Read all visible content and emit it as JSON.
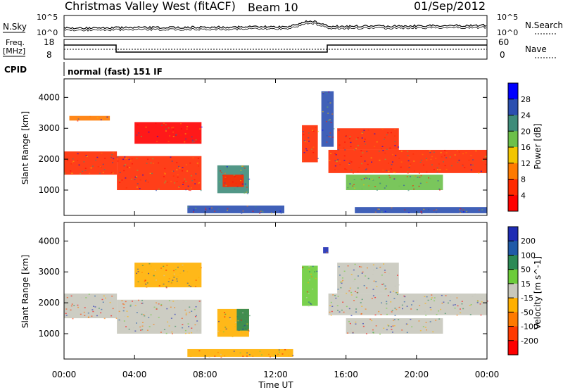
{
  "header": {
    "radar": "Christmas Valley West (fitACF)",
    "beam": "Beam 10",
    "date": "01/Sep/2012"
  },
  "panels": {
    "nsky_label": "N.Sky",
    "nsearch_label": "N.Search",
    "nsky_ticks": [
      "10^5",
      "10^0"
    ],
    "nsearch_ticks": [
      "10^5",
      "10^0"
    ],
    "freq_label_1": "Freq.",
    "freq_label_2": "[MHz]",
    "freq_ticks": [
      "18",
      "8"
    ],
    "nave_label": "Nave",
    "nave_ticks": [
      "60",
      "0"
    ],
    "cpid_label": "CPID",
    "cpid_text": "normal (fast) 151 IF"
  },
  "chart_data": [
    {
      "type": "heatmap",
      "name": "power",
      "ylabel": "Slant Range [km]",
      "yticks": [
        1000,
        2000,
        3000,
        4000
      ],
      "ylim": [
        180,
        4600
      ],
      "xlim": [
        0,
        24
      ],
      "colorbar_label": "Power [dB]",
      "colorbar_ticks": [
        4,
        8,
        12,
        16,
        20,
        24,
        28
      ],
      "colorbar_colors": [
        "#0000ff",
        "#2b4fb0",
        "#3f8c7a",
        "#6cc04a",
        "#f2c500",
        "#ff7a00",
        "#ff2a00",
        "#ff0000"
      ],
      "regions": [
        {
          "t0": 0.0,
          "t1": 3.0,
          "r0": 1500,
          "r1": 2250,
          "color": "#ff2a00"
        },
        {
          "t0": 0.3,
          "t1": 2.6,
          "r0": 3250,
          "r1": 3400,
          "color": "#ff7a00"
        },
        {
          "t0": 3.0,
          "t1": 7.8,
          "r0": 1000,
          "r1": 2100,
          "color": "#ff2a00"
        },
        {
          "t0": 4.0,
          "t1": 7.8,
          "r0": 2500,
          "r1": 3200,
          "color": "#ff0000"
        },
        {
          "t0": 8.7,
          "t1": 10.5,
          "r0": 900,
          "r1": 1800,
          "color": "#3f8c7a"
        },
        {
          "t0": 9.0,
          "t1": 10.2,
          "r0": 1100,
          "r1": 1500,
          "color": "#ff2a00"
        },
        {
          "t0": 7.0,
          "t1": 12.5,
          "r0": 250,
          "r1": 500,
          "color": "#2b4fb0"
        },
        {
          "t0": 13.5,
          "t1": 14.4,
          "r0": 1900,
          "r1": 3100,
          "color": "#ff2a00"
        },
        {
          "t0": 14.6,
          "t1": 15.3,
          "r0": 2400,
          "r1": 4200,
          "color": "#2b4fb0"
        },
        {
          "t0": 15.0,
          "t1": 24.0,
          "r0": 1550,
          "r1": 2300,
          "color": "#ff2a00"
        },
        {
          "t0": 15.5,
          "t1": 19.0,
          "r0": 2300,
          "r1": 3000,
          "color": "#ff2a00"
        },
        {
          "t0": 16.0,
          "t1": 21.5,
          "r0": 1000,
          "r1": 1500,
          "color": "#6cc04a"
        },
        {
          "t0": 16.5,
          "t1": 24.0,
          "r0": 250,
          "r1": 450,
          "color": "#2b4fb0"
        }
      ]
    },
    {
      "type": "heatmap",
      "name": "velocity",
      "ylabel": "Slant Range [km]",
      "yticks": [
        1000,
        2000,
        3000,
        4000
      ],
      "ylim": [
        180,
        4600
      ],
      "xlim": [
        0,
        24
      ],
      "xlabel": "Time UT",
      "xticks": [
        "00:00",
        "04:00",
        "08:00",
        "12:00",
        "16:00",
        "20:00",
        "00:00"
      ],
      "xtick_values": [
        0,
        4,
        8,
        12,
        16,
        20,
        24
      ],
      "colorbar_label": "Velocity [m s^-1]",
      "colorbar_ticks": [
        "200",
        "100",
        "50",
        "15",
        "-15",
        "-50",
        "-100",
        "-200"
      ],
      "colorbar_colors": [
        "#1e2cb4",
        "#1f5aa8",
        "#2c8a55",
        "#6ccc3a",
        "#c8c8bc",
        "#ffb000",
        "#ff7a00",
        "#ff3a00",
        "#ff0000"
      ],
      "regions": [
        {
          "t0": 0.0,
          "t1": 3.0,
          "r0": 1500,
          "r1": 2300,
          "color": "#c8c8bc"
        },
        {
          "t0": 3.0,
          "t1": 7.8,
          "r0": 1000,
          "r1": 2100,
          "color": "#c8c8bc"
        },
        {
          "t0": 4.0,
          "t1": 7.8,
          "r0": 2500,
          "r1": 3300,
          "color": "#ffb000"
        },
        {
          "t0": 8.7,
          "t1": 10.5,
          "r0": 900,
          "r1": 1800,
          "color": "#ffb000"
        },
        {
          "t0": 9.8,
          "t1": 10.5,
          "r0": 1100,
          "r1": 1800,
          "color": "#2c8a55"
        },
        {
          "t0": 7.0,
          "t1": 13.0,
          "r0": 250,
          "r1": 500,
          "color": "#ffb000"
        },
        {
          "t0": 13.5,
          "t1": 14.4,
          "r0": 1900,
          "r1": 3200,
          "color": "#6ccc3a"
        },
        {
          "t0": 14.7,
          "t1": 15.0,
          "r0": 3600,
          "r1": 3800,
          "color": "#1e2cb4"
        },
        {
          "t0": 15.0,
          "t1": 24.0,
          "r0": 1600,
          "r1": 2300,
          "color": "#c8c8bc"
        },
        {
          "t0": 15.5,
          "t1": 19.0,
          "r0": 2300,
          "r1": 3300,
          "color": "#c8c8bc"
        },
        {
          "t0": 16.0,
          "t1": 21.5,
          "r0": 1000,
          "r1": 1500,
          "color": "#c8c8bc"
        }
      ]
    }
  ]
}
